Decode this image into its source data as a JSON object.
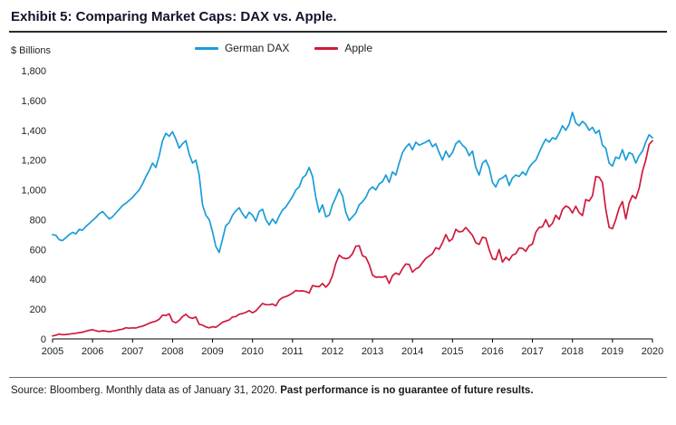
{
  "header": {
    "title": "Exhibit 5: Comparing Market Caps: DAX vs. Apple."
  },
  "chart_data": {
    "type": "line",
    "title": "Comparing Market Caps: DAX vs. Apple",
    "ylabel": "$ Billions",
    "xlabel": "",
    "ylim": [
      0,
      1800
    ],
    "ytick_step": 200,
    "grid": false,
    "legend_position": "top-center",
    "x_start_year": 2005,
    "x_end_year": 2020,
    "x_labels": [
      "2005",
      "2006",
      "2007",
      "2008",
      "2009",
      "2010",
      "2011",
      "2012",
      "2013",
      "2014",
      "2015",
      "2016",
      "2017",
      "2018",
      "2019",
      "2020"
    ],
    "x_frequency": "monthly",
    "series": [
      {
        "name": "German DAX",
        "color": "#1a9cd8",
        "values": [
          700,
          695,
          665,
          660,
          680,
          700,
          715,
          705,
          735,
          730,
          755,
          775,
          795,
          815,
          840,
          855,
          830,
          805,
          820,
          845,
          870,
          895,
          910,
          930,
          950,
          975,
          1000,
          1040,
          1090,
          1130,
          1180,
          1150,
          1230,
          1330,
          1380,
          1360,
          1390,
          1340,
          1280,
          1310,
          1330,
          1240,
          1180,
          1200,
          1100,
          900,
          830,
          800,
          720,
          620,
          580,
          670,
          760,
          780,
          830,
          860,
          880,
          840,
          810,
          850,
          830,
          790,
          855,
          870,
          800,
          765,
          805,
          775,
          825,
          865,
          885,
          920,
          955,
          1000,
          1020,
          1080,
          1100,
          1150,
          1090,
          950,
          850,
          900,
          820,
          830,
          900,
          950,
          1005,
          960,
          850,
          795,
          820,
          845,
          900,
          920,
          950,
          1000,
          1020,
          1000,
          1040,
          1055,
          1100,
          1050,
          1120,
          1100,
          1180,
          1250,
          1285,
          1310,
          1270,
          1320,
          1300,
          1310,
          1320,
          1335,
          1290,
          1310,
          1250,
          1200,
          1260,
          1220,
          1250,
          1310,
          1330,
          1300,
          1280,
          1230,
          1260,
          1150,
          1100,
          1180,
          1200,
          1150,
          1050,
          1020,
          1070,
          1080,
          1100,
          1030,
          1080,
          1100,
          1090,
          1120,
          1100,
          1150,
          1180,
          1200,
          1250,
          1300,
          1340,
          1320,
          1350,
          1340,
          1380,
          1430,
          1400,
          1440,
          1520,
          1450,
          1430,
          1460,
          1440,
          1400,
          1420,
          1380,
          1400,
          1300,
          1280,
          1180,
          1160,
          1220,
          1210,
          1270,
          1200,
          1250,
          1240,
          1180,
          1230,
          1260,
          1320,
          1370,
          1350
        ]
      },
      {
        "name": "Apple",
        "color": "#d0193c",
        "values": [
          20,
          25,
          33,
          28,
          30,
          32,
          35,
          38,
          42,
          45,
          52,
          58,
          62,
          55,
          50,
          55,
          52,
          48,
          53,
          56,
          62,
          65,
          75,
          72,
          74,
          73,
          80,
          86,
          95,
          105,
          113,
          119,
          132,
          160,
          157,
          168,
          118,
          108,
          124,
          150,
          165,
          145,
          138,
          147,
          98,
          93,
          80,
          74,
          82,
          78,
          94,
          112,
          120,
          127,
          147,
          150,
          166,
          170,
          178,
          190,
          175,
          188,
          212,
          238,
          230,
          229,
          234,
          222,
          260,
          277,
          284,
          294,
          308,
          325,
          321,
          322,
          318,
          308,
          358,
          353,
          350,
          372,
          347,
          372,
          425,
          508,
          562,
          545,
          538,
          545,
          572,
          622,
          625,
          558,
          548,
          500,
          428,
          414,
          416,
          414,
          422,
          372,
          424,
          442,
          432,
          472,
          502,
          500,
          448,
          470,
          482,
          512,
          540,
          556,
          572,
          612,
          602,
          645,
          700,
          655,
          672,
          735,
          718,
          722,
          748,
          722,
          695,
          645,
          635,
          682,
          676,
          600,
          538,
          532,
          600,
          515,
          548,
          528,
          562,
          572,
          610,
          608,
          588,
          625,
          636,
          716,
          748,
          752,
          800,
          752,
          776,
          830,
          802,
          868,
          892,
          880,
          845,
          890,
          848,
          828,
          935,
          925,
          960,
          1090,
          1085,
          1050,
          870,
          748,
          740,
          800,
          878,
          922,
          805,
          912,
          962,
          942,
          1010,
          1125,
          1200,
          1305,
          1330
        ]
      }
    ]
  },
  "footer": {
    "source_text": "Source: Bloomberg. Monthly data as of January 31, 2020. ",
    "disclaimer": "Past performance is no guarantee of future results."
  }
}
